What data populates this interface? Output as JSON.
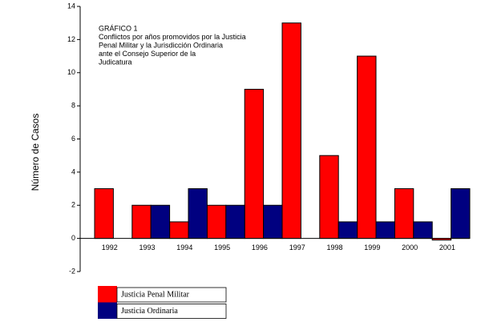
{
  "chart_data": {
    "type": "bar",
    "annotation": [
      "GRÁFICO 1",
      "Conflictos por años promovidos por la Justicia",
      "Penal Militar y la Jurisdicción Ordinaria",
      "ante el Consejo Superior de la",
      "Judicatura"
    ],
    "y_label": "Número de Casos",
    "categories": [
      "1992",
      "1993",
      "1994",
      "1995",
      "1996",
      "1997",
      "1998",
      "1999",
      "2000",
      "2001"
    ],
    "series": [
      {
        "name": "Justicia Penal Militar",
        "color": "#ff0000",
        "values": [
          3,
          2,
          1,
          2,
          9,
          13,
          5,
          11,
          3,
          -0.1
        ]
      },
      {
        "name": "Justicia Ordinaria",
        "color": "#000080",
        "values": [
          0,
          2,
          3,
          2,
          2,
          null,
          1,
          1,
          1,
          3
        ]
      }
    ],
    "ylim": [
      -2,
      14
    ],
    "yticks": [
      -2,
      0,
      2,
      4,
      6,
      8,
      10,
      12,
      14
    ],
    "grid": false
  }
}
